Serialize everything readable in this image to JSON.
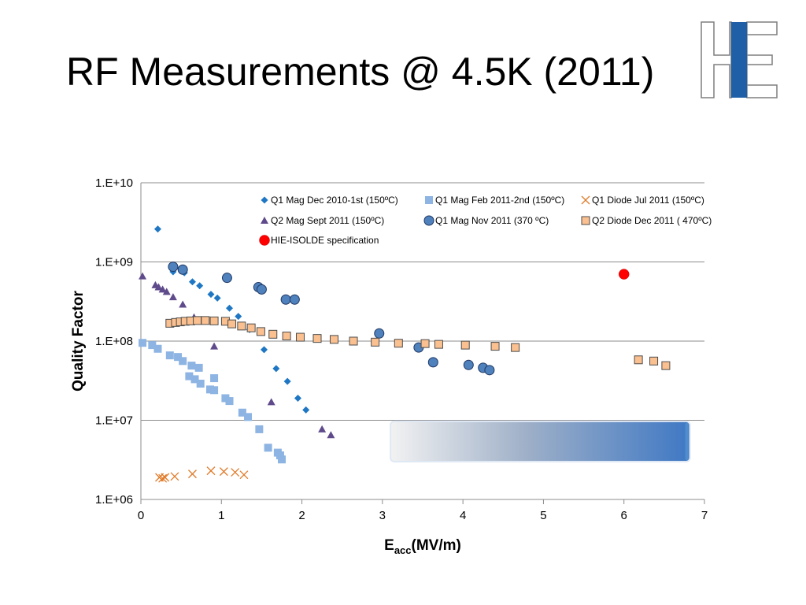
{
  "slide": {
    "title": "RF Measurements @ 4.5K (2011)"
  },
  "logo": {
    "name": "HIE logo",
    "letters": "HIE",
    "colors": {
      "outline": "#7f7f7f",
      "bar": "#1f5fa8"
    }
  },
  "chart_data": {
    "type": "scatter",
    "xlabel_main": "E",
    "xlabel_sub": "acc",
    "xlabel_unit": "(MV/m)",
    "ylabel": "Quality Factor",
    "xlim": [
      0,
      7
    ],
    "ylim": [
      1000000,
      10000000000
    ],
    "yscale": "log",
    "x_ticks": [
      "0",
      "1",
      "2",
      "3",
      "4",
      "5",
      "6",
      "7"
    ],
    "y_ticks": [
      "1.E+06",
      "1.E+07",
      "1.E+08",
      "1.E+09",
      "1.E+10"
    ],
    "grid": "horizontal",
    "legend_position": "top-right",
    "series": [
      {
        "name": "Q1 Mag Dec 2010-1st (150ºC)",
        "marker": "diamond",
        "color": "#1f77c4",
        "points": [
          [
            0.21,
            2600000000.0
          ],
          [
            0.4,
            750000000.0
          ],
          [
            0.54,
            730000000.0
          ],
          [
            0.64,
            560000000.0
          ],
          [
            0.73,
            500000000.0
          ],
          [
            0.87,
            390000000.0
          ],
          [
            0.95,
            350000000.0
          ],
          [
            1.1,
            260000000.0
          ],
          [
            1.21,
            205000000.0
          ],
          [
            1.35,
            140000000.0
          ],
          [
            1.53,
            78000000.0
          ],
          [
            1.68,
            45000000.0
          ],
          [
            1.82,
            31000000.0
          ],
          [
            1.95,
            19000000.0
          ],
          [
            2.05,
            13500000.0
          ]
        ]
      },
      {
        "name": "Q1 Mag Feb 2011-2nd  (150ºC)",
        "marker": "square",
        "color": "#8db4e2",
        "points": [
          [
            0.02,
            95000000.0
          ],
          [
            0.14,
            89000000.0
          ],
          [
            0.21,
            80000000.0
          ],
          [
            0.36,
            66000000.0
          ],
          [
            0.46,
            63000000.0
          ],
          [
            0.52,
            56000000.0
          ],
          [
            0.63,
            49000000.0
          ],
          [
            0.72,
            46000000.0
          ],
          [
            0.6,
            36000000.0
          ],
          [
            0.67,
            33000000.0
          ],
          [
            0.74,
            29000000.0
          ],
          [
            0.86,
            24500000.0
          ],
          [
            0.91,
            24000000.0
          ],
          [
            0.91,
            34000000.0
          ],
          [
            1.05,
            19000000.0
          ],
          [
            1.1,
            17500000.0
          ],
          [
            1.26,
            12500000.0
          ],
          [
            1.33,
            11000000.0
          ],
          [
            1.47,
            7700000.0
          ],
          [
            1.58,
            4500000.0
          ],
          [
            1.7,
            3900000.0
          ],
          [
            1.73,
            3600000.0
          ],
          [
            1.75,
            3200000.0
          ]
        ]
      },
      {
        "name": "Q1 Diode Jul 2011  (150ºC)",
        "marker": "x",
        "color": "#e07b2a",
        "points": [
          [
            0.23,
            1900000.0
          ],
          [
            0.27,
            1850000.0
          ],
          [
            0.3,
            1900000.0
          ],
          [
            0.42,
            1950000.0
          ],
          [
            0.64,
            2100000.0
          ],
          [
            0.87,
            2300000.0
          ],
          [
            1.03,
            2250000.0
          ],
          [
            1.17,
            2200000.0
          ],
          [
            1.28,
            2050000.0
          ]
        ]
      },
      {
        "name": "Q2 Mag Sept 2011  (150ºC)",
        "marker": "triangle",
        "color": "#5f4b8b",
        "points": [
          [
            0.02,
            660000000.0
          ],
          [
            0.18,
            510000000.0
          ],
          [
            0.22,
            480000000.0
          ],
          [
            0.27,
            450000000.0
          ],
          [
            0.32,
            420000000.0
          ],
          [
            0.4,
            360000000.0
          ],
          [
            0.52,
            290000000.0
          ],
          [
            0.66,
            200000000.0
          ],
          [
            0.91,
            86000000.0
          ],
          [
            1.62,
            17000000.0
          ],
          [
            2.25,
            7700000.0
          ],
          [
            2.36,
            6500000.0
          ]
        ]
      },
      {
        "name": "Q1 Mag Nov 2011 (370 ºC)",
        "marker": "circle",
        "color": "#4f81bd",
        "points": [
          [
            0.4,
            870000000.0
          ],
          [
            0.52,
            800000000.0
          ],
          [
            1.07,
            630000000.0
          ],
          [
            1.46,
            480000000.0
          ],
          [
            1.5,
            450000000.0
          ],
          [
            1.8,
            335000000.0
          ],
          [
            1.91,
            335000000.0
          ],
          [
            2.96,
            125000000.0
          ],
          [
            3.45,
            83000000.0
          ],
          [
            3.63,
            54000000.0
          ],
          [
            4.07,
            50000000.0
          ],
          [
            4.25,
            46000000.0
          ],
          [
            4.33,
            43000000.0
          ]
        ]
      },
      {
        "name": "Q2 Diode Dec 2011 ( 470ºC)",
        "marker": "square",
        "color": "#fac090",
        "points": [
          [
            0.36,
            168000000.0
          ],
          [
            0.43,
            172000000.0
          ],
          [
            0.49,
            175000000.0
          ],
          [
            0.55,
            178000000.0
          ],
          [
            0.62,
            180000000.0
          ],
          [
            0.7,
            182000000.0
          ],
          [
            0.8,
            182000000.0
          ],
          [
            0.91,
            180000000.0
          ],
          [
            1.05,
            178000000.0
          ],
          [
            1.13,
            165000000.0
          ],
          [
            1.25,
            155000000.0
          ],
          [
            1.37,
            147000000.0
          ],
          [
            1.49,
            132000000.0
          ],
          [
            1.64,
            122000000.0
          ],
          [
            1.81,
            116000000.0
          ],
          [
            1.98,
            112000000.0
          ],
          [
            2.19,
            108000000.0
          ],
          [
            2.4,
            105000000.0
          ],
          [
            2.64,
            100000000.0
          ],
          [
            2.91,
            97000000.0
          ],
          [
            3.2,
            94000000.0
          ],
          [
            3.53,
            93000000.0
          ],
          [
            3.7,
            91000000.0
          ],
          [
            4.03,
            89000000.0
          ],
          [
            4.4,
            86000000.0
          ],
          [
            4.65,
            83000000.0
          ],
          [
            6.18,
            58000000.0
          ],
          [
            6.37,
            56000000.0
          ],
          [
            6.52,
            49000000.0
          ]
        ]
      },
      {
        "name": "HIE-ISOLDE specification",
        "marker": "dot",
        "color": "#ff0000",
        "points": [
          [
            6.0,
            700000000.0
          ]
        ]
      }
    ],
    "annotation_box": {
      "x_range": [
        3.1,
        6.82
      ],
      "y_range": [
        3000000.0,
        9700000.0
      ]
    }
  }
}
